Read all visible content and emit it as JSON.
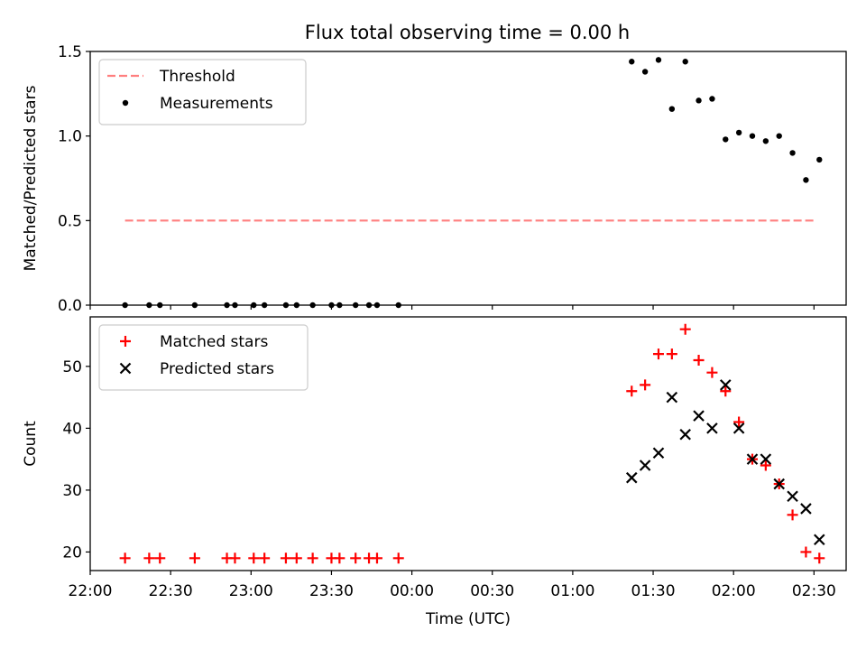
{
  "figure": {
    "title": "Flux total observing time = 0.00 h"
  },
  "chart_data": [
    {
      "type": "scatter",
      "ylabel": "Matched/Predicted stars",
      "xlabel": "",
      "xlim": [
        "22:00",
        "02:42"
      ],
      "ylim": [
        0,
        1.5
      ],
      "x_ticks": [
        "22:00",
        "22:30",
        "23:00",
        "23:30",
        "00:00",
        "00:30",
        "01:00",
        "01:30",
        "02:00",
        "02:30"
      ],
      "y_ticks": [
        "0.0",
        "0.5",
        "1.0",
        "1.5"
      ],
      "legend_position": "top-left",
      "threshold": {
        "name": "Threshold",
        "value": 0.5,
        "x_start": "22:13",
        "x_end": "02:31",
        "color": "#ff7f7f",
        "style": "dashed"
      },
      "series": [
        {
          "name": "Measurements",
          "color": "#000000",
          "marker": "dot",
          "x": [
            "22:13",
            "22:22",
            "22:26",
            "22:39",
            "22:51",
            "22:54",
            "23:01",
            "23:05",
            "23:13",
            "23:17",
            "23:23",
            "23:30",
            "23:33",
            "23:39",
            "23:44",
            "23:47",
            "23:55",
            "01:22",
            "01:27",
            "01:32",
            "01:37",
            "01:42",
            "01:47",
            "01:52",
            "01:57",
            "02:02",
            "02:07",
            "02:12",
            "02:17",
            "02:22",
            "02:27",
            "02:32"
          ],
          "y": [
            0,
            0,
            0,
            0,
            0,
            0,
            0,
            0,
            0,
            0,
            0,
            0,
            0,
            0,
            0,
            0,
            0,
            1.44,
            1.38,
            1.45,
            1.16,
            1.44,
            1.21,
            1.22,
            0.98,
            1.02,
            1.0,
            0.97,
            1.0,
            0.9,
            0.74,
            0.86
          ]
        }
      ]
    },
    {
      "type": "scatter",
      "ylabel": "Count",
      "xlabel": "Time (UTC)",
      "xlim": [
        "22:00",
        "02:42"
      ],
      "ylim": [
        17,
        58
      ],
      "x_ticks": [
        "22:00",
        "22:30",
        "23:00",
        "23:30",
        "00:00",
        "00:30",
        "01:00",
        "01:30",
        "02:00",
        "02:30"
      ],
      "y_ticks": [
        "20",
        "30",
        "40",
        "50"
      ],
      "legend_position": "top-left",
      "series": [
        {
          "name": "Matched stars",
          "color": "#ff0000",
          "marker": "plus",
          "x": [
            "22:13",
            "22:22",
            "22:26",
            "22:39",
            "22:51",
            "22:54",
            "23:01",
            "23:05",
            "23:13",
            "23:17",
            "23:23",
            "23:30",
            "23:33",
            "23:39",
            "23:44",
            "23:47",
            "23:55",
            "01:22",
            "01:27",
            "01:32",
            "01:37",
            "01:42",
            "01:47",
            "01:52",
            "01:57",
            "02:02",
            "02:07",
            "02:12",
            "02:17",
            "02:22",
            "02:27",
            "02:32"
          ],
          "y": [
            19,
            19,
            19,
            19,
            19,
            19,
            19,
            19,
            19,
            19,
            19,
            19,
            19,
            19,
            19,
            19,
            19,
            46,
            47,
            52,
            52,
            56,
            51,
            49,
            46,
            41,
            35,
            34,
            31,
            26,
            20,
            19
          ]
        },
        {
          "name": "Predicted stars",
          "color": "#000000",
          "marker": "x",
          "x": [
            "01:22",
            "01:27",
            "01:32",
            "01:37",
            "01:42",
            "01:47",
            "01:52",
            "01:57",
            "02:02",
            "02:07",
            "02:12",
            "02:17",
            "02:22",
            "02:27",
            "02:32"
          ],
          "y": [
            32,
            34,
            36,
            45,
            39,
            42,
            40,
            47,
            40,
            35,
            35,
            31,
            29,
            27,
            22
          ]
        }
      ]
    }
  ]
}
